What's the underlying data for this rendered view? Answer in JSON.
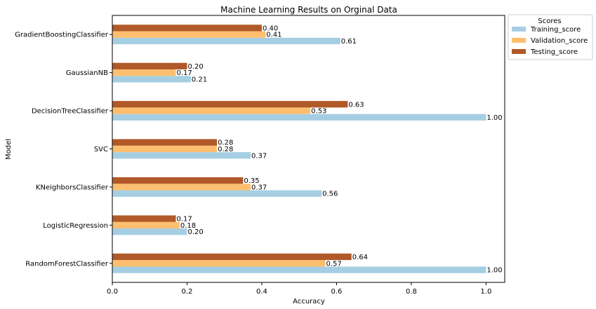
{
  "chart_data": {
    "type": "bar",
    "orientation": "horizontal",
    "title": "Machine Learning Results on Orginal Data",
    "xlabel": "Accuracy",
    "ylabel": "Model",
    "xlim": [
      0,
      1.05
    ],
    "xticks": [
      "0.0",
      "0.2",
      "0.4",
      "0.6",
      "0.8",
      "1.0"
    ],
    "categories": [
      "RandomForestClassifier",
      "LogisticRegression",
      "KNeighborsClassifier",
      "SVC",
      "DecisionTreeClassifier",
      "GaussianNB",
      "GradientBoostingClassifier"
    ],
    "series": [
      {
        "name": "Training_score",
        "color": "#a6cee3",
        "values": [
          1.0,
          0.2,
          0.56,
          0.37,
          1.0,
          0.21,
          0.61
        ],
        "labels": [
          "1.00",
          "0.20",
          "0.56",
          "0.37",
          "1.00",
          "0.21",
          "0.61"
        ]
      },
      {
        "name": "Validation_score",
        "color": "#fdbf6f",
        "values": [
          0.57,
          0.18,
          0.37,
          0.28,
          0.53,
          0.17,
          0.41
        ],
        "labels": [
          "0.57",
          "0.18",
          "0.37",
          "0.28",
          "0.53",
          "0.17",
          "0.41"
        ]
      },
      {
        "name": "Testing_score",
        "color": "#b15928",
        "values": [
          0.64,
          0.17,
          0.35,
          0.28,
          0.63,
          0.2,
          0.4
        ],
        "labels": [
          "0.64",
          "0.17",
          "0.35",
          "0.28",
          "0.63",
          "0.20",
          "0.40"
        ]
      }
    ],
    "legend": {
      "title": "Scores",
      "placement": "outside-top-right"
    },
    "grid": false
  }
}
